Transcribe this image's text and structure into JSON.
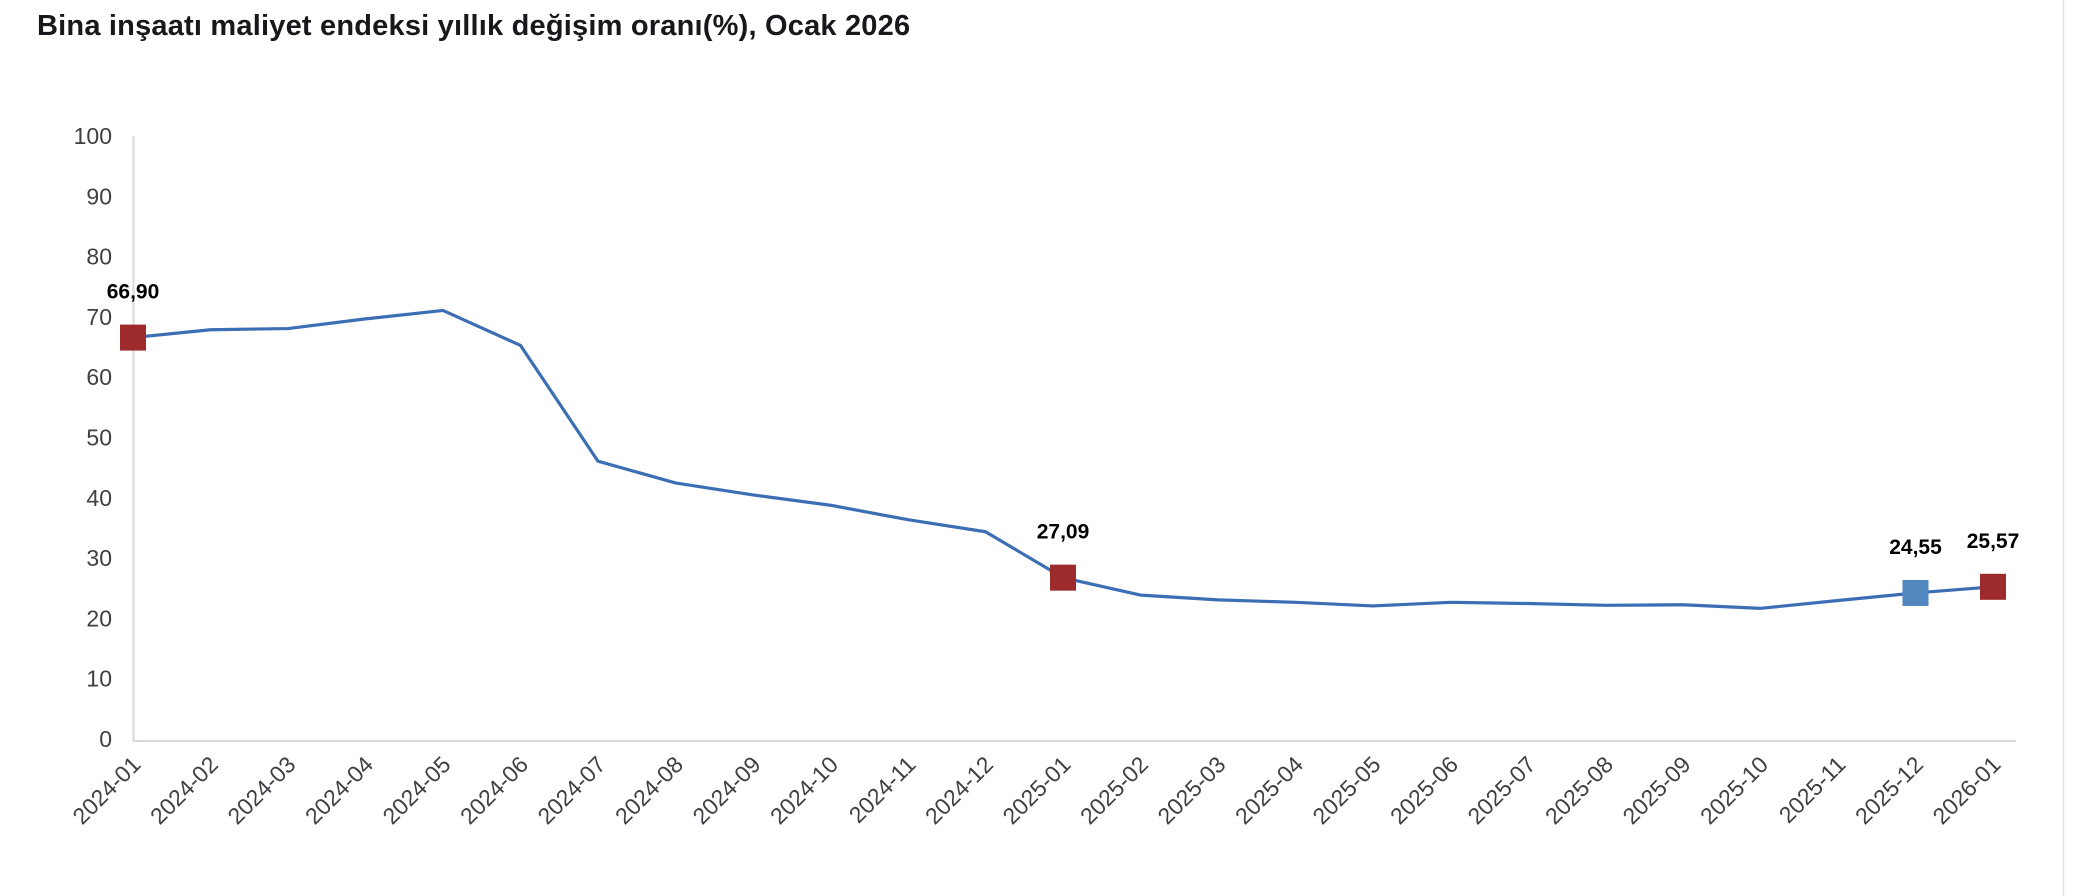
{
  "title": "Bina inşaatı maliyet endeksi yıllık değişim oranı(%), Ocak 2026",
  "chart_data": {
    "type": "line",
    "title": "Bina inşaatı maliyet endeksi yıllık değişim oranı(%), Ocak 2026",
    "xlabel": "",
    "ylabel": "",
    "ylim": [
      0,
      100
    ],
    "y_ticks": [
      0,
      10,
      20,
      30,
      40,
      50,
      60,
      70,
      80,
      90,
      100
    ],
    "grid": false,
    "legend": "none",
    "categories": [
      "2024-01",
      "2024-02",
      "2024-03",
      "2024-04",
      "2024-05",
      "2024-06",
      "2024-07",
      "2024-08",
      "2024-09",
      "2024-10",
      "2024-11",
      "2024-12",
      "2025-01",
      "2025-02",
      "2025-03",
      "2025-04",
      "2025-05",
      "2025-06",
      "2025-07",
      "2025-08",
      "2025-09",
      "2025-10",
      "2025-11",
      "2025-12",
      "2026-01"
    ],
    "values": [
      66.9,
      68.2,
      68.4,
      70.0,
      71.4,
      65.6,
      46.4,
      42.8,
      40.8,
      39.1,
      36.7,
      34.7,
      27.09,
      24.2,
      23.4,
      23.0,
      22.4,
      23.0,
      22.8,
      22.5,
      22.6,
      22.0,
      23.3,
      24.55,
      25.57
    ],
    "labeled_points": [
      {
        "index": 0,
        "label": "66,90",
        "marker_color": "#9e2b2b"
      },
      {
        "index": 12,
        "label": "27,09",
        "marker_color": "#9e2b2b"
      },
      {
        "index": 23,
        "label": "24,55",
        "marker_color": "#5286be"
      },
      {
        "index": 24,
        "label": "25,57",
        "marker_color": "#9e2b2b"
      }
    ],
    "line_color": "#3c6eb4",
    "axis_color": "#d6d9dd",
    "tick_label_color": "#3f4045",
    "title_color": "#17171c",
    "point_label_color": "#000000"
  }
}
